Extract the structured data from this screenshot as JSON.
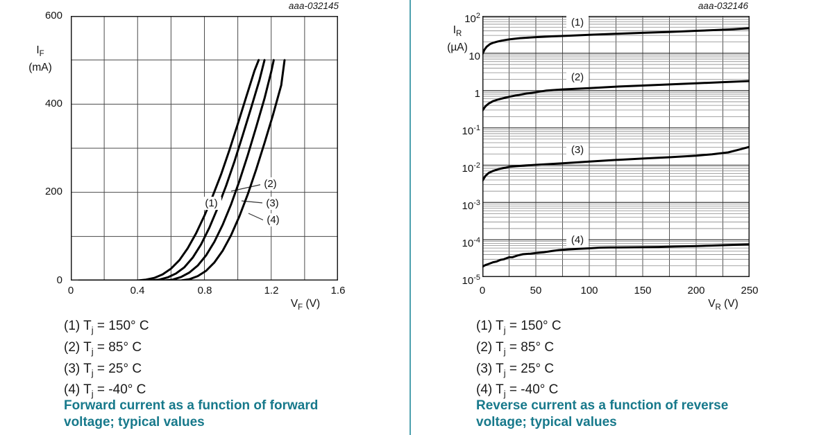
{
  "colors": {
    "accent_teal": "#17798b",
    "divider_teal": "#4da0ae",
    "curve": "#000000",
    "grid_minor": "#888888",
    "grid_major": "#3a3a3a"
  },
  "panels": [
    {
      "plot_id": "aaa-032145",
      "y_axis": {
        "sym": "I",
        "sub": "F",
        "unit": "(mA)"
      },
      "x_axis": {
        "sym": "V",
        "sub": "F",
        "unit": " (V)"
      },
      "y_ticks": [
        "600",
        "400",
        "200",
        "0"
      ],
      "x_ticks": [
        "0",
        "0.4",
        "0.8",
        "1.2",
        "1.6"
      ],
      "curve_labels": [
        "(1)",
        "(2)",
        "(3)",
        "(4)"
      ],
      "legend": [
        {
          "pre": "(1) T",
          "sub": "j",
          "post": " = 150° C"
        },
        {
          "pre": "(2) T",
          "sub": "j",
          "post": " = 85° C"
        },
        {
          "pre": "(3) T",
          "sub": "j",
          "post": " = 25° C"
        },
        {
          "pre": "(4) T",
          "sub": "j",
          "post": " = -40° C"
        }
      ],
      "caption": "Forward current as a function of forward voltage; typical values"
    },
    {
      "plot_id": "aaa-032146",
      "y_axis": {
        "sym": "I",
        "sub": "R",
        "unit": "(µA)"
      },
      "x_axis": {
        "sym": "V",
        "sub": "R",
        "unit": " (V)"
      },
      "y_ticks": [
        {
          "b": "10",
          "e": "2"
        },
        {
          "b": "10",
          "e": ""
        },
        {
          "b": "1",
          "e": ""
        },
        {
          "b": "10",
          "e": "-1"
        },
        {
          "b": "10",
          "e": "-2"
        },
        {
          "b": "10",
          "e": "-3"
        },
        {
          "b": "10",
          "e": "-4"
        },
        {
          "b": "10",
          "e": "-5"
        }
      ],
      "x_ticks": [
        "0",
        "50",
        "100",
        "150",
        "200",
        "250"
      ],
      "curve_labels": [
        "(1)",
        "(2)",
        "(3)",
        "(4)"
      ],
      "legend": [
        {
          "pre": "(1) T",
          "sub": "j",
          "post": " = 150° C"
        },
        {
          "pre": "(2) T",
          "sub": "j",
          "post": " = 85° C"
        },
        {
          "pre": "(3) T",
          "sub": "j",
          "post": " = 25° C"
        },
        {
          "pre": "(4) T",
          "sub": "j",
          "post": " = -40° C"
        }
      ],
      "caption": "Reverse current as a function of reverse voltage; typical values"
    }
  ],
  "chart_data": [
    {
      "type": "line",
      "plot_id": "aaa-032145",
      "title": "Forward current as a function of forward voltage; typical values",
      "xlabel": "VF (V)",
      "ylabel": "IF (mA)",
      "xlim": [
        0,
        1.6
      ],
      "ylim": [
        0,
        600
      ],
      "x_grid_step": 0.2,
      "y_grid_step": 100,
      "grid": true,
      "legend_position": "below",
      "series": [
        {
          "name": "(1)",
          "condition": "Tj = 150 deg C",
          "points": [
            [
              0.05,
              0
            ],
            [
              0.4,
              0
            ],
            [
              0.45,
              2
            ],
            [
              0.5,
              6
            ],
            [
              0.55,
              14
            ],
            [
              0.6,
              27
            ],
            [
              0.65,
              46
            ],
            [
              0.7,
              73
            ],
            [
              0.75,
              107
            ],
            [
              0.8,
              147
            ],
            [
              0.85,
              192
            ],
            [
              0.9,
              241
            ],
            [
              0.95,
              296
            ],
            [
              1.0,
              355
            ],
            [
              1.05,
              416
            ],
            [
              1.1,
              476
            ],
            [
              1.125,
              500
            ]
          ]
        },
        {
          "name": "(2)",
          "condition": "Tj = 85 deg C",
          "points": [
            [
              0.08,
              0
            ],
            [
              0.48,
              0
            ],
            [
              0.53,
              2
            ],
            [
              0.58,
              7
            ],
            [
              0.63,
              16
            ],
            [
              0.68,
              30
            ],
            [
              0.73,
              52
            ],
            [
              0.78,
              82
            ],
            [
              0.83,
              120
            ],
            [
              0.88,
              165
            ],
            [
              0.93,
              215
            ],
            [
              0.98,
              270
            ],
            [
              1.03,
              330
            ],
            [
              1.08,
              392
            ],
            [
              1.13,
              455
            ],
            [
              1.16,
              500
            ]
          ]
        },
        {
          "name": "(3)",
          "condition": "Tj = 25 deg C",
          "points": [
            [
              0.12,
              0
            ],
            [
              0.56,
              0
            ],
            [
              0.61,
              2
            ],
            [
              0.66,
              8
            ],
            [
              0.71,
              18
            ],
            [
              0.76,
              34
            ],
            [
              0.81,
              57
            ],
            [
              0.86,
              88
            ],
            [
              0.91,
              127
            ],
            [
              0.96,
              173
            ],
            [
              1.01,
              226
            ],
            [
              1.06,
              285
            ],
            [
              1.11,
              348
            ],
            [
              1.16,
              413
            ],
            [
              1.2,
              473
            ],
            [
              1.215,
              500
            ]
          ]
        },
        {
          "name": "(4)",
          "condition": "Tj = -40 deg C",
          "points": [
            [
              0.16,
              0
            ],
            [
              0.66,
              0
            ],
            [
              0.71,
              3
            ],
            [
              0.76,
              10
            ],
            [
              0.81,
              22
            ],
            [
              0.86,
              41
            ],
            [
              0.91,
              68
            ],
            [
              0.96,
              103
            ],
            [
              1.01,
              146
            ],
            [
              1.06,
              196
            ],
            [
              1.11,
              252
            ],
            [
              1.16,
              312
            ],
            [
              1.21,
              375
            ],
            [
              1.26,
              443
            ],
            [
              1.28,
              500
            ]
          ]
        }
      ]
    },
    {
      "type": "line",
      "plot_id": "aaa-032146",
      "title": "Reverse current as a function of reverse voltage; typical values",
      "xlabel": "VR (V)",
      "ylabel": "IR (uA)",
      "xlim": [
        0,
        250
      ],
      "ylim": [
        1e-05,
        100
      ],
      "log_y": true,
      "x_grid_minor": 25,
      "x_grid_major": 50,
      "grid": true,
      "legend_position": "below",
      "series": [
        {
          "name": "(1)",
          "condition": "Tj = 150 deg C",
          "points": [
            [
              0,
              9.5
            ],
            [
              2,
              12.5
            ],
            [
              4,
              15
            ],
            [
              7,
              17.5
            ],
            [
              10,
              19
            ],
            [
              14,
              20.5
            ],
            [
              18,
              21.7
            ],
            [
              25,
              23.5
            ],
            [
              35,
              25.3
            ],
            [
              50,
              27
            ],
            [
              65,
              28.3
            ],
            [
              80,
              29.5
            ],
            [
              100,
              31.2
            ],
            [
              125,
              33.2
            ],
            [
              150,
              35.2
            ],
            [
              175,
              37.3
            ],
            [
              200,
              39.8
            ],
            [
              220,
              42
            ],
            [
              235,
              44
            ],
            [
              250,
              47
            ]
          ]
        },
        {
          "name": "(2)",
          "condition": "Tj = 85 deg C",
          "points": [
            [
              0,
              0.29
            ],
            [
              3,
              0.38
            ],
            [
              6,
              0.45
            ],
            [
              10,
              0.52
            ],
            [
              15,
              0.58
            ],
            [
              25,
              0.68
            ],
            [
              40,
              0.82
            ],
            [
              50,
              0.9
            ],
            [
              60,
              1.0
            ],
            [
              75,
              1.07
            ],
            [
              100,
              1.16
            ],
            [
              125,
              1.27
            ],
            [
              150,
              1.36
            ],
            [
              175,
              1.46
            ],
            [
              200,
              1.56
            ],
            [
              225,
              1.68
            ],
            [
              250,
              1.8
            ]
          ]
        },
        {
          "name": "(3)",
          "condition": "Tj = 25 deg C",
          "points": [
            [
              0,
              0.0038
            ],
            [
              3,
              0.0052
            ],
            [
              6,
              0.0062
            ],
            [
              10,
              0.007
            ],
            [
              15,
              0.0078
            ],
            [
              25,
              0.009
            ],
            [
              40,
              0.0098
            ],
            [
              50,
              0.0102
            ],
            [
              75,
              0.0112
            ],
            [
              100,
              0.0125
            ],
            [
              125,
              0.0138
            ],
            [
              150,
              0.015
            ],
            [
              175,
              0.0163
            ],
            [
              200,
              0.018
            ],
            [
              215,
              0.0195
            ],
            [
              230,
              0.022
            ],
            [
              240,
              0.026
            ],
            [
              250,
              0.031
            ]
          ]
        },
        {
          "name": "(4)",
          "condition": "Tj = -40 deg C",
          "points": [
            [
              0,
              1.9e-05
            ],
            [
              3,
              2.1e-05
            ],
            [
              6,
              2.25e-05
            ],
            [
              10,
              2.5e-05
            ],
            [
              13,
              2.6e-05
            ],
            [
              17,
              2.9e-05
            ],
            [
              20,
              3e-05
            ],
            [
              25,
              3.4e-05
            ],
            [
              28,
              3.4e-05
            ],
            [
              33,
              3.8e-05
            ],
            [
              38,
              4.1e-05
            ],
            [
              45,
              4.25e-05
            ],
            [
              50,
              4.4e-05
            ],
            [
              57,
              4.6e-05
            ],
            [
              65,
              5e-05
            ],
            [
              72,
              5.3e-05
            ],
            [
              80,
              5.5e-05
            ],
            [
              90,
              5.7e-05
            ],
            [
              100,
              5.9e-05
            ],
            [
              110,
              6.15e-05
            ],
            [
              120,
              6.2e-05
            ],
            [
              135,
              6.25e-05
            ],
            [
              150,
              6.3e-05
            ],
            [
              165,
              6.4e-05
            ],
            [
              180,
              6.6e-05
            ],
            [
              200,
              6.8e-05
            ],
            [
              215,
              7e-05
            ],
            [
              230,
              7.2e-05
            ],
            [
              250,
              7.5e-05
            ]
          ]
        }
      ]
    }
  ]
}
